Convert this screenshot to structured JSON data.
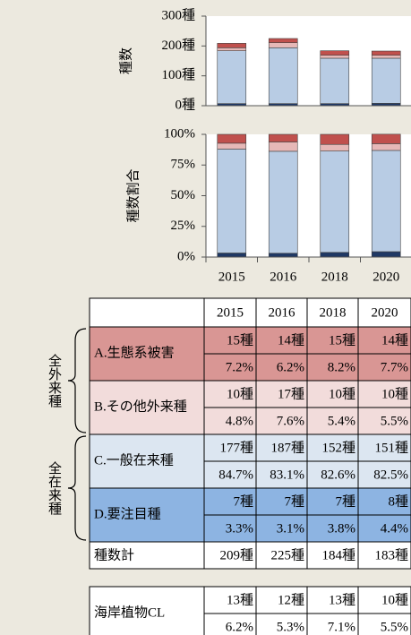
{
  "chart_data": [
    {
      "type": "bar",
      "stacked": true,
      "ylabel": "種数",
      "ylim": [
        0,
        300
      ],
      "yticks": [
        {
          "value": 0,
          "label": "0種"
        },
        {
          "value": 100,
          "label": "100種"
        },
        {
          "value": 200,
          "label": "200種"
        },
        {
          "value": 300,
          "label": "300種"
        }
      ],
      "series": [
        {
          "color": "#1f3864",
          "values": [
            7,
            7,
            7,
            8
          ]
        },
        {
          "color": "#b8cce4",
          "values": [
            177,
            187,
            152,
            151
          ]
        },
        {
          "color": "#e6b8b7",
          "values": [
            10,
            17,
            10,
            10
          ]
        },
        {
          "color": "#c0504d",
          "values": [
            15,
            14,
            15,
            14
          ]
        }
      ]
    },
    {
      "type": "bar",
      "stacked": true,
      "ylabel": "種数割合",
      "categories": [
        "2015",
        "2016",
        "2018",
        "2020"
      ],
      "ylim": [
        0,
        100
      ],
      "yticks": [
        {
          "value": 0,
          "label": "0%"
        },
        {
          "value": 25,
          "label": "25%"
        },
        {
          "value": 50,
          "label": "50%"
        },
        {
          "value": 75,
          "label": "75%"
        },
        {
          "value": 100,
          "label": "100%"
        }
      ],
      "series": [
        {
          "color": "#1f3864",
          "values": [
            3.3,
            3.1,
            3.8,
            4.4
          ]
        },
        {
          "color": "#b8cce4",
          "values": [
            84.7,
            83.1,
            82.6,
            82.5
          ]
        },
        {
          "color": "#e6b8b7",
          "values": [
            4.8,
            7.6,
            5.4,
            5.5
          ]
        },
        {
          "color": "#c0504d",
          "values": [
            7.2,
            6.2,
            8.2,
            7.7
          ]
        }
      ]
    }
  ],
  "table": {
    "columns": [
      "2015",
      "2016",
      "2018",
      "2020"
    ],
    "groups": [
      {
        "label": "全外来種",
        "rows": [
          {
            "label": "A.生態系被害",
            "color": "#d99694",
            "counts": [
              "15種",
              "14種",
              "15種",
              "14種"
            ],
            "shares": [
              "7.2%",
              "6.2%",
              "8.2%",
              "7.7%"
            ]
          },
          {
            "label": "B.その他外来種",
            "color": "#f2dcdb",
            "counts": [
              "10種",
              "17種",
              "10種",
              "10種"
            ],
            "shares": [
              "4.8%",
              "7.6%",
              "5.4%",
              "5.5%"
            ]
          }
        ]
      },
      {
        "label": "全在来種",
        "rows": [
          {
            "label": "C.一般在来種",
            "color": "#dce6f1",
            "counts": [
              "177種",
              "187種",
              "152種",
              "151種"
            ],
            "shares": [
              "84.7%",
              "83.1%",
              "82.6%",
              "82.5%"
            ]
          },
          {
            "label": "D.要注目種",
            "color": "#8db4e2",
            "counts": [
              "7種",
              "7種",
              "7種",
              "8種"
            ],
            "shares": [
              "3.3%",
              "3.1%",
              "3.8%",
              "4.4%"
            ]
          }
        ]
      }
    ],
    "total": {
      "label": "種数計",
      "values": [
        "209種",
        "225種",
        "184種",
        "183種"
      ]
    }
  },
  "cl_table": {
    "label": "海岸植物CL",
    "counts": [
      "13種",
      "12種",
      "13種",
      "10種"
    ],
    "shares": [
      "6.2%",
      "5.3%",
      "7.1%",
      "5.5%"
    ]
  }
}
